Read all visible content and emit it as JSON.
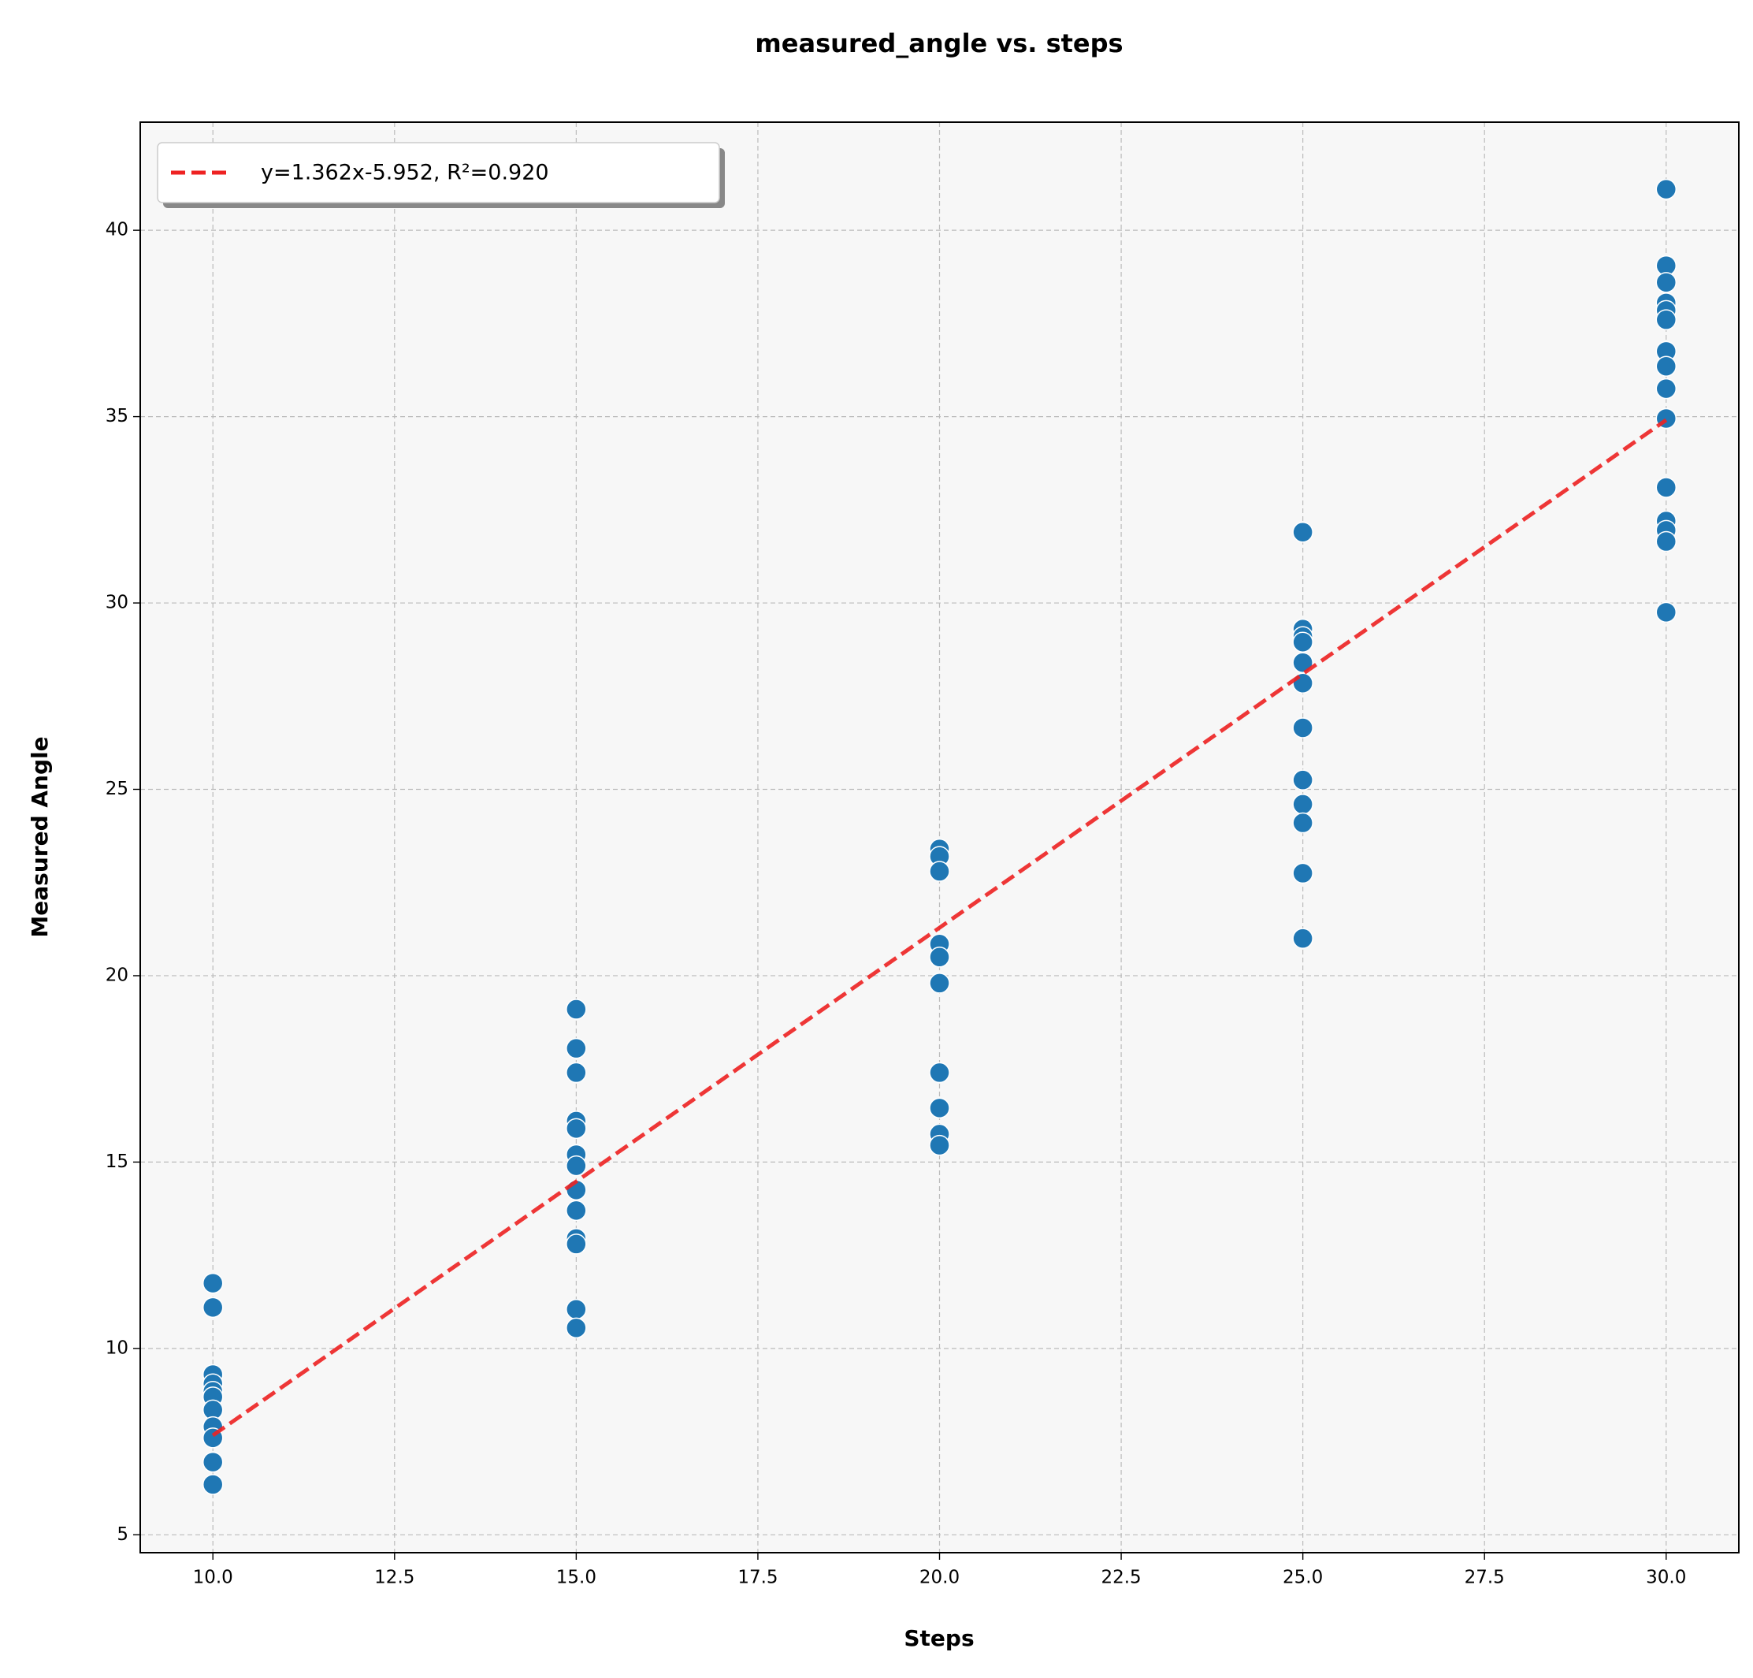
{
  "chart_data": {
    "type": "scatter",
    "title": "measured_angle vs. steps",
    "x_label": "Steps",
    "y_label": "Measured Angle",
    "x": [
      10,
      10,
      10,
      10,
      10,
      10,
      10,
      10,
      10,
      10,
      10,
      15,
      15,
      15,
      15,
      15,
      15,
      15,
      15,
      15,
      15,
      15,
      15,
      15,
      20,
      20,
      20,
      20,
      20,
      20,
      20,
      20,
      20,
      20,
      25,
      25,
      25,
      25,
      25,
      25,
      25,
      25,
      25,
      25,
      25,
      25,
      30,
      30,
      30,
      30,
      30,
      30,
      30,
      30,
      30,
      30,
      30,
      30,
      30,
      30,
      30
    ],
    "values": [
      11.75,
      11.1,
      9.3,
      9.05,
      8.85,
      8.7,
      8.35,
      7.9,
      7.6,
      6.95,
      6.35,
      19.1,
      18.05,
      17.4,
      16.1,
      15.9,
      15.2,
      14.9,
      14.25,
      13.7,
      12.95,
      12.8,
      11.05,
      10.55,
      23.4,
      23.2,
      22.8,
      20.85,
      20.5,
      19.8,
      17.4,
      16.45,
      15.75,
      15.45,
      31.9,
      29.3,
      29.1,
      28.95,
      28.4,
      27.85,
      26.65,
      25.25,
      24.6,
      24.1,
      22.75,
      21.0,
      41.1,
      39.05,
      38.6,
      38.05,
      37.85,
      37.6,
      36.75,
      36.35,
      35.75,
      34.95,
      33.1,
      32.2,
      31.95,
      31.65,
      29.75
    ],
    "color": "#1f77b4",
    "trendline": {
      "name": "y=1.362x-5.952, R²=0.920",
      "color": "#ee2222",
      "slope": 1.362,
      "intercept": -5.952,
      "r2": 0.92
    },
    "xlim": [
      9,
      31
    ],
    "ylim": [
      4.52,
      42.9
    ],
    "xticks": [
      {
        "value": 10,
        "label": "10.0"
      },
      12.5,
      {
        "value": 15,
        "label": "15.0"
      },
      17.5,
      {
        "value": 20,
        "label": "20.0"
      },
      22.5,
      {
        "value": 25,
        "label": "25.0"
      },
      27.5,
      {
        "value": 30,
        "label": "30.0"
      }
    ],
    "yticks": [
      5,
      10,
      15,
      20,
      25,
      30,
      35,
      40
    ],
    "grid": true,
    "legend": "upper left"
  }
}
